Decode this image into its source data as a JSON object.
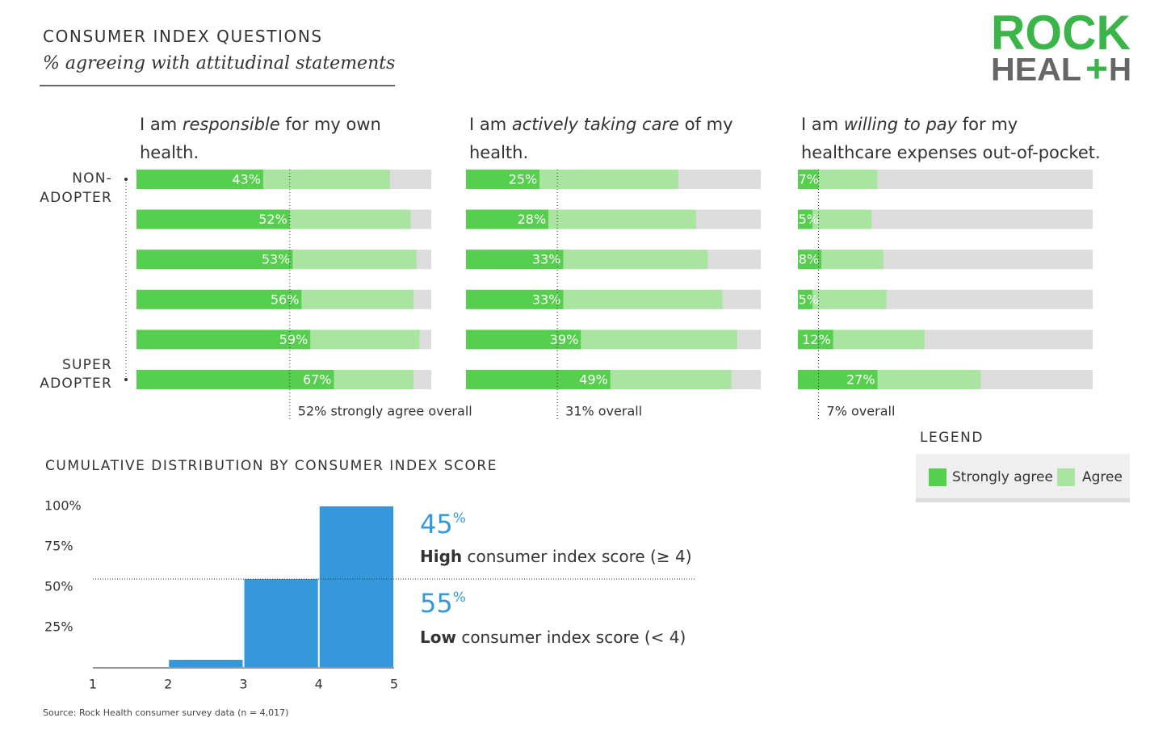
{
  "header": {
    "title": "CONSUMER INDEX QUESTIONS",
    "subtitle": "% agreeing with attitudinal statements"
  },
  "logo": {
    "line1": "ROCK",
    "line2": [
      "HEAL",
      "+",
      "H"
    ]
  },
  "scale": {
    "top": [
      "NON-",
      "ADOPTER"
    ],
    "bottom": [
      "SUPER",
      "ADOPTER"
    ]
  },
  "chart_data": [
    {
      "type": "stacked-hbar",
      "title": "I am responsible for my own health.",
      "emphasis": "responsible",
      "categories": [
        null,
        null,
        null,
        null,
        null,
        null
      ],
      "xlim": [
        0,
        100
      ],
      "track_color": "#dcdcdc",
      "series": [
        {
          "name": "Strongly agree",
          "color": "#55cf4d",
          "values": [
            43,
            52,
            53,
            56,
            59,
            67
          ],
          "value_labels": [
            "43%",
            "52%",
            "53%",
            "56%",
            "59%",
            "67%"
          ]
        },
        {
          "name": "Agree",
          "color": "#a9e5a0",
          "values": [
            43,
            41,
            42,
            38,
            37,
            27
          ]
        }
      ],
      "reference": {
        "value": 52,
        "label": "52% strongly agree overall"
      }
    },
    {
      "type": "stacked-hbar",
      "title": "I am actively taking care of my health.",
      "emphasis": "actively taking care",
      "categories": [
        null,
        null,
        null,
        null,
        null,
        null
      ],
      "xlim": [
        0,
        100
      ],
      "track_color": "#dcdcdc",
      "series": [
        {
          "name": "Strongly agree",
          "color": "#55cf4d",
          "values": [
            25,
            28,
            33,
            33,
            39,
            49
          ],
          "value_labels": [
            "25%",
            "28%",
            "33%",
            "33%",
            "39%",
            "49%"
          ]
        },
        {
          "name": "Agree",
          "color": "#a9e5a0",
          "values": [
            47,
            50,
            49,
            54,
            53,
            41
          ]
        }
      ],
      "reference": {
        "value": 31,
        "label": "31% overall"
      }
    },
    {
      "type": "stacked-hbar",
      "title": "I am willing to pay for my healthcare expenses out-of-pocket.",
      "emphasis": "willing to pay",
      "categories": [
        null,
        null,
        null,
        null,
        null,
        null
      ],
      "xlim": [
        0,
        100
      ],
      "track_color": "#dcdcdc",
      "series": [
        {
          "name": "Strongly agree",
          "color": "#55cf4d",
          "values": [
            7,
            5,
            8,
            5,
            12,
            27
          ],
          "value_labels": [
            "7%",
            "5%",
            "8%",
            "5%",
            "12%",
            "27%"
          ]
        },
        {
          "name": "Agree",
          "color": "#a9e5a0",
          "values": [
            20,
            20,
            21,
            25,
            31,
            35
          ]
        }
      ],
      "reference": {
        "value": 7,
        "label": "7% overall"
      }
    },
    {
      "type": "histogram",
      "title": "CUMULATIVE DISTRIBUTION BY CONSUMER INDEX SCORE",
      "bins": [
        1,
        2,
        3,
        4,
        5
      ],
      "values": [
        0,
        5,
        55,
        100
      ],
      "color": "#3498db",
      "xlim": [
        1,
        5
      ],
      "xticks": [
        1,
        2,
        3,
        4,
        5
      ],
      "ylim": [
        0,
        100
      ],
      "yticks": [
        {
          "value": 25,
          "label": "25%"
        },
        {
          "value": 50,
          "label": "50%"
        },
        {
          "value": 75,
          "label": "75%"
        },
        {
          "value": 100,
          "label": "100%"
        }
      ],
      "reference_line": 55,
      "annotations": [
        {
          "stat": "45%",
          "bold": "High",
          "text": " consumer index score (≥ 4)"
        },
        {
          "stat": "55%",
          "bold": "Low",
          "text": " consumer index score (< 4)"
        }
      ]
    }
  ],
  "legend": {
    "title": "LEGEND"
  },
  "source": "Source: Rock Health consumer survey data (n = 4,017)"
}
